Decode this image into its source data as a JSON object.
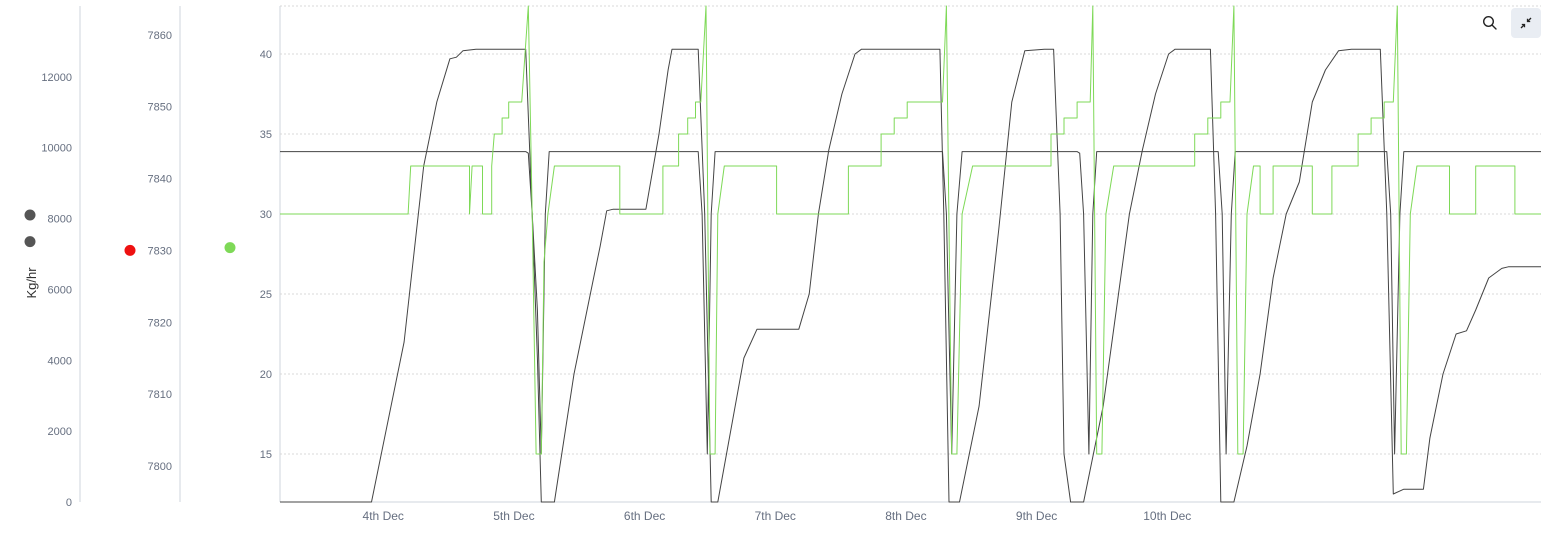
{
  "toolbar": {
    "zoom_icon": "search-icon",
    "collapse_icon": "collapse-arrows-icon"
  },
  "colors": {
    "gray_series": "#444444",
    "red_marker": "#ee1111",
    "green_series": "#7ed957",
    "grid": "#d9d9d9",
    "axis_line": "#cfd4dc",
    "tick_text": "#666f80"
  },
  "chart_data": {
    "type": "line",
    "grid": true,
    "x": {
      "type": "date",
      "start": "3rd Dec 17:00",
      "end": "10th Dec 23:00",
      "tick_labels": [
        "4th Dec",
        "5th Dec",
        "6th Dec",
        "7th Dec",
        "8th Dec",
        "9th Dec",
        "10th Dec"
      ]
    },
    "axes": [
      {
        "id": "kg",
        "label": "Kg/hr",
        "range": [
          0,
          14000
        ],
        "ticks": [
          0,
          2000,
          4000,
          6000,
          8000,
          10000,
          12000
        ]
      },
      {
        "id": "mid",
        "label": "",
        "range": [
          7795,
          7864
        ],
        "ticks": [
          7800,
          7810,
          7820,
          7830,
          7840,
          7850,
          7860
        ]
      },
      {
        "id": "main",
        "label": "",
        "range": [
          12,
          43
        ],
        "ticks": [
          15,
          20,
          25,
          30,
          35,
          40
        ]
      }
    ],
    "markers": [
      {
        "axis": "kg",
        "value": 8100,
        "color": "#555555"
      },
      {
        "axis": "kg",
        "value": 7350,
        "color": "#555555"
      },
      {
        "axis": "mid",
        "value": 7830,
        "color": "#ee1111"
      },
      {
        "axis": "main",
        "value": 27.9,
        "color": "#7ed957"
      }
    ],
    "series": [
      {
        "axis": "main",
        "color": "#444444",
        "points": [
          [
            0,
            12
          ],
          [
            0.7,
            12
          ],
          [
            0.95,
            22
          ],
          [
            1.1,
            33
          ],
          [
            1.2,
            37
          ],
          [
            1.3,
            39.7
          ],
          [
            1.35,
            39.8
          ],
          [
            1.4,
            40.2
          ],
          [
            1.5,
            40.3
          ],
          [
            1.88,
            40.3
          ],
          [
            1.93,
            30
          ],
          [
            1.97,
            21
          ],
          [
            2.0,
            12
          ],
          [
            2.1,
            12
          ],
          [
            2.25,
            20
          ],
          [
            2.4,
            26
          ],
          [
            2.45,
            28
          ],
          [
            2.5,
            30.2
          ],
          [
            2.55,
            30.3
          ],
          [
            2.8,
            30.3
          ],
          [
            2.9,
            35
          ],
          [
            2.97,
            39
          ],
          [
            3.0,
            40.3
          ],
          [
            3.2,
            40.3
          ],
          [
            3.25,
            30
          ],
          [
            3.3,
            12
          ],
          [
            3.35,
            12
          ],
          [
            3.55,
            21
          ],
          [
            3.65,
            22.8
          ],
          [
            3.97,
            22.8
          ],
          [
            4.05,
            25
          ],
          [
            4.12,
            30
          ],
          [
            4.2,
            34
          ],
          [
            4.3,
            37.5
          ],
          [
            4.4,
            40
          ],
          [
            4.45,
            40.3
          ],
          [
            5.05,
            40.3
          ],
          [
            5.08,
            30
          ],
          [
            5.12,
            12
          ],
          [
            5.2,
            12
          ],
          [
            5.35,
            18
          ],
          [
            5.5,
            29
          ],
          [
            5.6,
            37
          ],
          [
            5.7,
            40.2
          ],
          [
            5.85,
            40.3
          ],
          [
            5.92,
            40.3
          ],
          [
            5.97,
            30
          ],
          [
            6.0,
            15
          ],
          [
            6.05,
            12
          ],
          [
            6.15,
            12
          ],
          [
            6.3,
            18
          ],
          [
            6.4,
            24
          ],
          [
            6.5,
            30
          ],
          [
            6.6,
            34
          ],
          [
            6.7,
            37.5
          ],
          [
            6.8,
            40
          ],
          [
            6.85,
            40.3
          ],
          [
            7.12,
            40.3
          ],
          [
            7.16,
            30
          ],
          [
            7.2,
            12
          ],
          [
            7.3,
            12
          ],
          [
            7.4,
            15.5
          ],
          [
            7.5,
            20
          ],
          [
            7.6,
            26
          ],
          [
            7.7,
            30
          ],
          [
            7.8,
            32
          ],
          [
            7.9,
            37
          ],
          [
            8.0,
            39
          ],
          [
            8.1,
            40.2
          ],
          [
            8.2,
            40.3
          ],
          [
            8.42,
            40.3
          ],
          [
            8.47,
            30
          ],
          [
            8.52,
            12.5
          ],
          [
            8.6,
            12.8
          ],
          [
            8.75,
            12.8
          ],
          [
            8.8,
            16
          ],
          [
            8.9,
            20
          ],
          [
            9.0,
            22.5
          ],
          [
            9.08,
            22.7
          ],
          [
            9.15,
            24
          ],
          [
            9.25,
            26
          ],
          [
            9.35,
            26.6
          ],
          [
            9.4,
            26.7
          ],
          [
            9.65,
            26.7
          ]
        ]
      },
      {
        "axis": "main",
        "color": "#444444",
        "points": [
          [
            0,
            33.9
          ],
          [
            1.88,
            33.9
          ],
          [
            1.9,
            33.8
          ],
          [
            1.93,
            30
          ],
          [
            1.97,
            24
          ],
          [
            2.0,
            15
          ],
          [
            2.03,
            30
          ],
          [
            2.06,
            33.9
          ],
          [
            3.2,
            33.9
          ],
          [
            3.23,
            30
          ],
          [
            3.27,
            15
          ],
          [
            3.3,
            30
          ],
          [
            3.33,
            33.9
          ],
          [
            5.07,
            33.9
          ],
          [
            5.1,
            30
          ],
          [
            5.14,
            15
          ],
          [
            5.18,
            30
          ],
          [
            5.22,
            33.9
          ],
          [
            6.1,
            33.9
          ],
          [
            6.12,
            33.8
          ],
          [
            6.15,
            30
          ],
          [
            6.19,
            15
          ],
          [
            6.22,
            30
          ],
          [
            6.25,
            33.9
          ],
          [
            7.18,
            33.9
          ],
          [
            7.21,
            30
          ],
          [
            7.24,
            15
          ],
          [
            7.28,
            30
          ],
          [
            7.31,
            33.9
          ],
          [
            8.47,
            33.9
          ],
          [
            8.5,
            30
          ],
          [
            8.53,
            15
          ],
          [
            8.57,
            30
          ],
          [
            8.6,
            33.9
          ],
          [
            9.65,
            33.9
          ]
        ]
      },
      {
        "axis": "main",
        "color": "#7ed957",
        "points": [
          [
            0,
            30
          ],
          [
            0.98,
            30
          ],
          [
            1.0,
            33
          ],
          [
            1.45,
            33
          ],
          [
            1.45,
            30
          ],
          [
            1.47,
            33
          ],
          [
            1.55,
            33
          ],
          [
            1.55,
            30
          ],
          [
            1.62,
            30
          ],
          [
            1.62,
            33
          ],
          [
            1.64,
            35
          ],
          [
            1.7,
            35
          ],
          [
            1.7,
            36
          ],
          [
            1.75,
            36
          ],
          [
            1.75,
            37
          ],
          [
            1.85,
            37
          ],
          [
            1.9,
            43
          ],
          [
            1.93,
            30
          ],
          [
            1.96,
            15
          ],
          [
            2.0,
            15
          ],
          [
            2.02,
            27
          ],
          [
            2.05,
            30
          ],
          [
            2.1,
            33
          ],
          [
            2.6,
            33
          ],
          [
            2.6,
            30
          ],
          [
            2.93,
            30
          ],
          [
            2.93,
            33
          ],
          [
            3.05,
            33
          ],
          [
            3.05,
            35
          ],
          [
            3.12,
            35
          ],
          [
            3.12,
            36
          ],
          [
            3.18,
            36
          ],
          [
            3.18,
            37
          ],
          [
            3.22,
            37
          ],
          [
            3.26,
            43
          ],
          [
            3.29,
            15
          ],
          [
            3.33,
            15
          ],
          [
            3.35,
            30
          ],
          [
            3.4,
            33
          ],
          [
            3.8,
            33
          ],
          [
            3.8,
            30
          ],
          [
            4.35,
            30
          ],
          [
            4.35,
            33
          ],
          [
            4.6,
            33
          ],
          [
            4.6,
            35
          ],
          [
            4.7,
            35
          ],
          [
            4.7,
            36
          ],
          [
            4.8,
            36
          ],
          [
            4.8,
            37
          ],
          [
            5.07,
            37
          ],
          [
            5.1,
            43
          ],
          [
            5.14,
            15
          ],
          [
            5.18,
            15
          ],
          [
            5.22,
            30
          ],
          [
            5.3,
            33
          ],
          [
            5.9,
            33
          ],
          [
            5.9,
            35
          ],
          [
            6.0,
            35
          ],
          [
            6.0,
            36
          ],
          [
            6.1,
            36
          ],
          [
            6.1,
            37
          ],
          [
            6.2,
            37
          ],
          [
            6.22,
            43
          ],
          [
            6.25,
            15
          ],
          [
            6.29,
            15
          ],
          [
            6.32,
            30
          ],
          [
            6.38,
            33
          ],
          [
            7.0,
            33
          ],
          [
            7.0,
            35
          ],
          [
            7.1,
            35
          ],
          [
            7.1,
            36
          ],
          [
            7.2,
            36
          ],
          [
            7.2,
            37
          ],
          [
            7.27,
            37
          ],
          [
            7.3,
            43
          ],
          [
            7.33,
            15
          ],
          [
            7.37,
            15
          ],
          [
            7.4,
            30
          ],
          [
            7.45,
            33
          ],
          [
            7.5,
            33
          ],
          [
            7.5,
            30
          ],
          [
            7.6,
            30
          ],
          [
            7.6,
            33
          ],
          [
            7.9,
            33
          ],
          [
            7.9,
            30
          ],
          [
            8.05,
            30
          ],
          [
            8.05,
            33
          ],
          [
            8.25,
            33
          ],
          [
            8.25,
            35
          ],
          [
            8.35,
            35
          ],
          [
            8.35,
            36
          ],
          [
            8.45,
            36
          ],
          [
            8.45,
            37
          ],
          [
            8.52,
            37
          ],
          [
            8.55,
            43
          ],
          [
            8.58,
            15
          ],
          [
            8.62,
            15
          ],
          [
            8.65,
            30
          ],
          [
            8.7,
            33
          ],
          [
            8.95,
            33
          ],
          [
            8.95,
            30
          ],
          [
            9.15,
            30
          ],
          [
            9.15,
            33
          ],
          [
            9.45,
            33
          ],
          [
            9.45,
            30
          ],
          [
            9.65,
            30
          ]
        ]
      }
    ]
  }
}
